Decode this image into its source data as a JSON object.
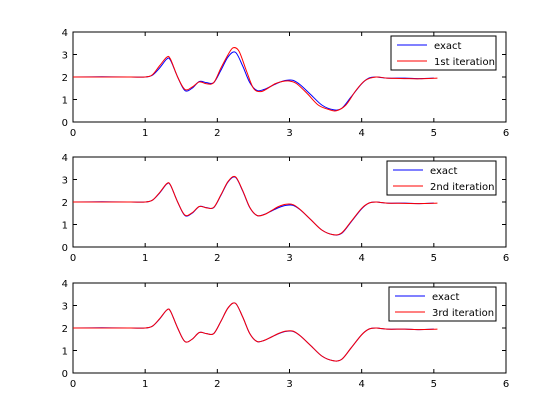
{
  "chart_data": [
    {
      "type": "line",
      "xlim": [
        0,
        6
      ],
      "ylim": [
        0,
        4
      ],
      "xticks": [
        "0",
        "1",
        "2",
        "3",
        "4",
        "5",
        "6"
      ],
      "yticks": [
        "0",
        "1",
        "2",
        "3",
        "4"
      ],
      "grid": false,
      "legend_position": "top-right",
      "series": [
        {
          "name": "exact",
          "color": "#0000ff",
          "points": [
            [
              0,
              2
            ],
            [
              0.4,
              2.01
            ],
            [
              0.8,
              2
            ],
            [
              1.0,
              2.0
            ],
            [
              1.1,
              2.08
            ],
            [
              1.2,
              2.4
            ],
            [
              1.3,
              2.8
            ],
            [
              1.35,
              2.75
            ],
            [
              1.45,
              2.0
            ],
            [
              1.55,
              1.4
            ],
            [
              1.65,
              1.5
            ],
            [
              1.75,
              1.8
            ],
            [
              1.85,
              1.75
            ],
            [
              1.95,
              1.75
            ],
            [
              2.05,
              2.3
            ],
            [
              2.15,
              2.9
            ],
            [
              2.25,
              3.1
            ],
            [
              2.35,
              2.5
            ],
            [
              2.45,
              1.75
            ],
            [
              2.55,
              1.4
            ],
            [
              2.65,
              1.45
            ],
            [
              2.75,
              1.6
            ],
            [
              2.85,
              1.75
            ],
            [
              2.95,
              1.85
            ],
            [
              3.05,
              1.85
            ],
            [
              3.15,
              1.65
            ],
            [
              3.3,
              1.2
            ],
            [
              3.45,
              0.75
            ],
            [
              3.6,
              0.55
            ],
            [
              3.72,
              0.6
            ],
            [
              3.85,
              1.1
            ],
            [
              4.0,
              1.7
            ],
            [
              4.1,
              1.95
            ],
            [
              4.2,
              2.0
            ],
            [
              4.35,
              1.95
            ],
            [
              4.6,
              1.95
            ],
            [
              4.8,
              1.93
            ],
            [
              5.0,
              1.95
            ]
          ]
        },
        {
          "name": "1st iteration",
          "color": "#ff0000",
          "points": [
            [
              0,
              2
            ],
            [
              0.4,
              2.0
            ],
            [
              0.8,
              2
            ],
            [
              1.0,
              2.0
            ],
            [
              1.1,
              2.1
            ],
            [
              1.2,
              2.5
            ],
            [
              1.3,
              2.88
            ],
            [
              1.35,
              2.8
            ],
            [
              1.45,
              2.0
            ],
            [
              1.55,
              1.45
            ],
            [
              1.65,
              1.55
            ],
            [
              1.75,
              1.78
            ],
            [
              1.85,
              1.7
            ],
            [
              1.95,
              1.75
            ],
            [
              2.05,
              2.4
            ],
            [
              2.15,
              3.0
            ],
            [
              2.22,
              3.3
            ],
            [
              2.3,
              3.15
            ],
            [
              2.4,
              2.3
            ],
            [
              2.5,
              1.5
            ],
            [
              2.6,
              1.35
            ],
            [
              2.7,
              1.5
            ],
            [
              2.8,
              1.7
            ],
            [
              2.9,
              1.8
            ],
            [
              3.0,
              1.82
            ],
            [
              3.1,
              1.7
            ],
            [
              3.25,
              1.25
            ],
            [
              3.4,
              0.75
            ],
            [
              3.55,
              0.55
            ],
            [
              3.65,
              0.5
            ],
            [
              3.78,
              0.75
            ],
            [
              3.92,
              1.4
            ],
            [
              4.05,
              1.85
            ],
            [
              4.2,
              2.0
            ],
            [
              4.35,
              1.95
            ],
            [
              4.6,
              1.93
            ],
            [
              4.8,
              1.92
            ],
            [
              5.05,
              1.95
            ]
          ]
        }
      ]
    },
    {
      "type": "line",
      "xlim": [
        0,
        6
      ],
      "ylim": [
        0,
        4
      ],
      "xticks": [
        "0",
        "1",
        "2",
        "3",
        "4",
        "5",
        "6"
      ],
      "yticks": [
        "0",
        "1",
        "2",
        "3",
        "4"
      ],
      "grid": false,
      "legend_position": "top-right",
      "series": [
        {
          "name": "exact",
          "color": "#0000ff",
          "points": [
            [
              0,
              2
            ],
            [
              0.4,
              2.01
            ],
            [
              0.8,
              2
            ],
            [
              1.0,
              2.0
            ],
            [
              1.1,
              2.08
            ],
            [
              1.2,
              2.4
            ],
            [
              1.3,
              2.8
            ],
            [
              1.35,
              2.75
            ],
            [
              1.45,
              2.0
            ],
            [
              1.55,
              1.4
            ],
            [
              1.65,
              1.5
            ],
            [
              1.75,
              1.8
            ],
            [
              1.85,
              1.75
            ],
            [
              1.95,
              1.75
            ],
            [
              2.05,
              2.3
            ],
            [
              2.15,
              2.9
            ],
            [
              2.25,
              3.1
            ],
            [
              2.35,
              2.5
            ],
            [
              2.45,
              1.75
            ],
            [
              2.55,
              1.4
            ],
            [
              2.65,
              1.45
            ],
            [
              2.75,
              1.6
            ],
            [
              2.85,
              1.75
            ],
            [
              2.95,
              1.85
            ],
            [
              3.05,
              1.85
            ],
            [
              3.15,
              1.65
            ],
            [
              3.3,
              1.2
            ],
            [
              3.45,
              0.75
            ],
            [
              3.6,
              0.55
            ],
            [
              3.72,
              0.6
            ],
            [
              3.85,
              1.1
            ],
            [
              4.0,
              1.7
            ],
            [
              4.1,
              1.95
            ],
            [
              4.2,
              2.0
            ],
            [
              4.35,
              1.95
            ],
            [
              4.6,
              1.95
            ],
            [
              4.8,
              1.93
            ],
            [
              5.0,
              1.95
            ]
          ]
        },
        {
          "name": "2nd iteration",
          "color": "#ff0000",
          "points": [
            [
              0,
              2
            ],
            [
              0.4,
              2.0
            ],
            [
              0.8,
              2
            ],
            [
              1.0,
              2.0
            ],
            [
              1.1,
              2.08
            ],
            [
              1.2,
              2.42
            ],
            [
              1.3,
              2.82
            ],
            [
              1.35,
              2.76
            ],
            [
              1.45,
              2.0
            ],
            [
              1.55,
              1.42
            ],
            [
              1.65,
              1.52
            ],
            [
              1.75,
              1.8
            ],
            [
              1.85,
              1.74
            ],
            [
              1.95,
              1.76
            ],
            [
              2.05,
              2.32
            ],
            [
              2.15,
              2.92
            ],
            [
              2.25,
              3.12
            ],
            [
              2.35,
              2.52
            ],
            [
              2.45,
              1.76
            ],
            [
              2.55,
              1.4
            ],
            [
              2.65,
              1.44
            ],
            [
              2.75,
              1.62
            ],
            [
              2.85,
              1.8
            ],
            [
              2.95,
              1.9
            ],
            [
              3.05,
              1.88
            ],
            [
              3.15,
              1.66
            ],
            [
              3.3,
              1.2
            ],
            [
              3.45,
              0.75
            ],
            [
              3.6,
              0.55
            ],
            [
              3.72,
              0.62
            ],
            [
              3.85,
              1.12
            ],
            [
              4.0,
              1.72
            ],
            [
              4.1,
              1.95
            ],
            [
              4.2,
              2.0
            ],
            [
              4.35,
              1.95
            ],
            [
              4.6,
              1.94
            ],
            [
              4.8,
              1.93
            ],
            [
              5.05,
              1.95
            ]
          ]
        }
      ]
    },
    {
      "type": "line",
      "xlim": [
        0,
        6
      ],
      "ylim": [
        0,
        4
      ],
      "xticks": [
        "0",
        "1",
        "2",
        "3",
        "4",
        "5",
        "6"
      ],
      "yticks": [
        "0",
        "1",
        "2",
        "3",
        "4"
      ],
      "grid": false,
      "legend_position": "top-right",
      "series": [
        {
          "name": "exact",
          "color": "#0000ff",
          "points": [
            [
              0,
              2
            ],
            [
              0.4,
              2.01
            ],
            [
              0.8,
              2
            ],
            [
              1.0,
              2.0
            ],
            [
              1.1,
              2.08
            ],
            [
              1.2,
              2.4
            ],
            [
              1.3,
              2.8
            ],
            [
              1.35,
              2.75
            ],
            [
              1.45,
              2.0
            ],
            [
              1.55,
              1.4
            ],
            [
              1.65,
              1.5
            ],
            [
              1.75,
              1.8
            ],
            [
              1.85,
              1.75
            ],
            [
              1.95,
              1.75
            ],
            [
              2.05,
              2.3
            ],
            [
              2.15,
              2.9
            ],
            [
              2.25,
              3.1
            ],
            [
              2.35,
              2.5
            ],
            [
              2.45,
              1.75
            ],
            [
              2.55,
              1.4
            ],
            [
              2.65,
              1.45
            ],
            [
              2.75,
              1.6
            ],
            [
              2.85,
              1.75
            ],
            [
              2.95,
              1.85
            ],
            [
              3.05,
              1.85
            ],
            [
              3.15,
              1.65
            ],
            [
              3.3,
              1.2
            ],
            [
              3.45,
              0.75
            ],
            [
              3.6,
              0.55
            ],
            [
              3.72,
              0.6
            ],
            [
              3.85,
              1.1
            ],
            [
              4.0,
              1.7
            ],
            [
              4.1,
              1.95
            ],
            [
              4.2,
              2.0
            ],
            [
              4.35,
              1.95
            ],
            [
              4.6,
              1.95
            ],
            [
              4.8,
              1.93
            ],
            [
              5.0,
              1.95
            ]
          ]
        },
        {
          "name": "3rd iteration",
          "color": "#ff0000",
          "points": [
            [
              0,
              2
            ],
            [
              0.4,
              2.0
            ],
            [
              0.8,
              2
            ],
            [
              1.0,
              2.0
            ],
            [
              1.1,
              2.08
            ],
            [
              1.2,
              2.41
            ],
            [
              1.3,
              2.8
            ],
            [
              1.35,
              2.75
            ],
            [
              1.45,
              2.0
            ],
            [
              1.55,
              1.4
            ],
            [
              1.65,
              1.5
            ],
            [
              1.75,
              1.8
            ],
            [
              1.85,
              1.75
            ],
            [
              1.95,
              1.75
            ],
            [
              2.05,
              2.3
            ],
            [
              2.15,
              2.9
            ],
            [
              2.25,
              3.1
            ],
            [
              2.35,
              2.5
            ],
            [
              2.45,
              1.75
            ],
            [
              2.55,
              1.4
            ],
            [
              2.65,
              1.45
            ],
            [
              2.75,
              1.6
            ],
            [
              2.85,
              1.76
            ],
            [
              2.95,
              1.86
            ],
            [
              3.05,
              1.86
            ],
            [
              3.15,
              1.65
            ],
            [
              3.3,
              1.2
            ],
            [
              3.45,
              0.75
            ],
            [
              3.6,
              0.55
            ],
            [
              3.72,
              0.6
            ],
            [
              3.85,
              1.1
            ],
            [
              4.0,
              1.7
            ],
            [
              4.1,
              1.95
            ],
            [
              4.2,
              2.0
            ],
            [
              4.35,
              1.95
            ],
            [
              4.6,
              1.95
            ],
            [
              4.8,
              1.93
            ],
            [
              5.05,
              1.95
            ]
          ]
        }
      ]
    }
  ]
}
